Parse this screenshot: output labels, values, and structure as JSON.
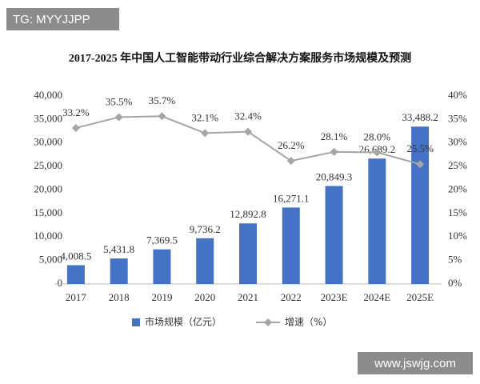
{
  "watermarks": [
    "TG: MYYJJPP",
    "www.jswjg.com"
  ],
  "chart_data": {
    "type": "combo",
    "title": "2017-2025 年中国人工智能带动行业综合解决方案服务市场规模及预测",
    "categories": [
      "2017",
      "2018",
      "2019",
      "2020",
      "2021",
      "2022",
      "2023E",
      "2024E",
      "2025E"
    ],
    "series": [
      {
        "name": "市场规模（亿元）",
        "type": "bar",
        "color": "#4472c4",
        "values": [
          4008.5,
          5431.8,
          7369.5,
          9736.2,
          12892.8,
          16271.1,
          20849.3,
          26689.2,
          33488.2
        ],
        "value_labels": [
          "4,008.5",
          "5,431.8",
          "7,369.5",
          "9,736.2",
          "12,892.8",
          "16,271.1",
          "20,849.3",
          "26,689.2",
          "33,488.2"
        ]
      },
      {
        "name": "增速（%）",
        "type": "line",
        "axis": "y2",
        "color": "#a5a5a5",
        "values": [
          33.2,
          35.5,
          35.7,
          32.1,
          32.4,
          26.2,
          28.1,
          28.0,
          25.5
        ],
        "value_labels": [
          "33.2%",
          "35.5%",
          "35.7%",
          "32.1%",
          "32.4%",
          "26.2%",
          "28.1%",
          "28.0%",
          "25.5%"
        ]
      }
    ],
    "ylim": [
      0,
      40000
    ],
    "yticks": [
      0,
      {
        "value": 5000,
        "label": "5,000"
      },
      {
        "value": 10000,
        "label": "10,000"
      },
      {
        "value": 15000,
        "label": "15,000"
      },
      {
        "value": 20000,
        "label": "20,000"
      },
      {
        "value": 25000,
        "label": "25,000"
      },
      {
        "value": 30000,
        "label": "30,000"
      },
      {
        "value": 35000,
        "label": "35,000"
      },
      {
        "value": 40000,
        "label": "40,000"
      }
    ],
    "y2lim": [
      0,
      40
    ],
    "y2ticks": [
      {
        "value": 0,
        "label": "0%"
      },
      {
        "value": 5,
        "label": "5%"
      },
      {
        "value": 10,
        "label": "10%"
      },
      {
        "value": 15,
        "label": "15%"
      },
      {
        "value": 20,
        "label": "20%"
      },
      {
        "value": 25,
        "label": "25%"
      },
      {
        "value": 30,
        "label": "30%"
      },
      {
        "value": 35,
        "label": "35%"
      },
      {
        "value": 40,
        "label": "40%"
      }
    ],
    "grid": false,
    "legend": "bottom"
  }
}
